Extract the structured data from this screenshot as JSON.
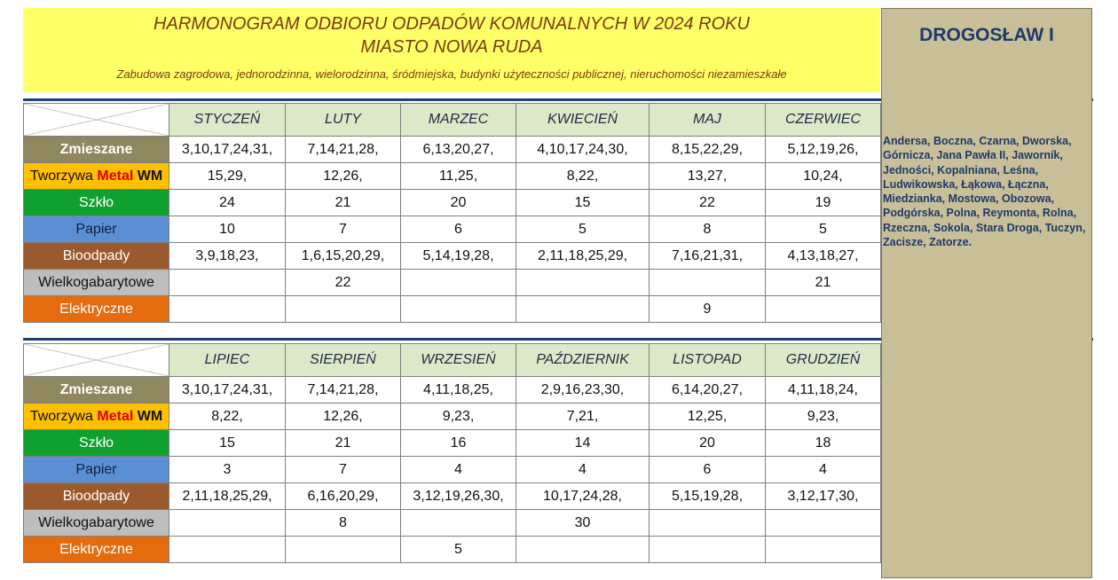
{
  "header": {
    "title_line1": "HARMONOGRAM ODBIORU  ODPADÓW  KOMUNALNYCH W 2024 ROKU",
    "title_line2": "MIASTO NOWA RUDA",
    "subtitle": "Zabudowa zagrodowa, jednorodzinna, wielorodzinna, śródmiejska, budynki użyteczności publicznej, nieruchomości niezamieszkałe"
  },
  "colors": {
    "header_bg": "#ffff66",
    "title_text": "#7b3b12",
    "side_bg": "#c8bf99",
    "side_text": "#1f3a6b",
    "month_bg": "#dce9c8",
    "rule": "#233e72"
  },
  "side": {
    "title": "DROGOSŁAW I",
    "streets": "Andersa, Boczna, Czarna, Dworska, Górnicza, Jana Pawła II, Jaworník, Jedności, Kopalniana, Leśna, Ludwikowska, Łąkowa, Łączna, Miedzianka, Mostowa, Obozowa, Podgórska, Polna, Reymonta, Rolna, Rzeczna, Sokola, Stara Droga, Tuczyn, Zacisze, Zatorze."
  },
  "categories": {
    "zmieszane": "Zmieszane",
    "tworzywa": "Tworzywa",
    "metal": "Metal",
    "wm": "WM",
    "szklo": "Szkło",
    "papier": "Papier",
    "bio": "Bioodpady",
    "wielko": "Wielkogabarytowe",
    "elektr": "Elektryczne"
  },
  "half1": {
    "months": [
      "STYCZEŃ",
      "LUTY",
      "MARZEC",
      "KWIECIEŃ",
      "MAJ",
      "CZERWIEC"
    ],
    "zmieszane": [
      "3,10,17,24,31,",
      "7,14,21,28,",
      "6,13,20,27,",
      "4,10,17,24,30,",
      "8,15,22,29,",
      "5,12,19,26,"
    ],
    "tworzywa": [
      "15,29,",
      "12,26,",
      "11,25,",
      "8,22,",
      "13,27,",
      "10,24,"
    ],
    "szklo": [
      "24",
      "21",
      "20",
      "15",
      "22",
      "19"
    ],
    "papier": [
      "10",
      "7",
      "6",
      "5",
      "8",
      "5"
    ],
    "bio": [
      "3,9,18,23,",
      "1,6,15,20,29,",
      "5,14,19,28,",
      "2,11,18,25,29,",
      "7,16,21,31,",
      "4,13,18,27,"
    ],
    "wielko": [
      "",
      "22",
      "",
      "",
      "",
      "21"
    ],
    "elektr": [
      "",
      "",
      "",
      "",
      "9",
      ""
    ]
  },
  "half2": {
    "months": [
      "LIPIEC",
      "SIERPIEŃ",
      "WRZESIEŃ",
      "PAŹDZIERNIK",
      "LISTOPAD",
      "GRUDZIEŃ"
    ],
    "zmieszane": [
      "3,10,17,24,31,",
      "7,14,21,28,",
      "4,11,18,25,",
      "2,9,16,23,30,",
      "6,14,20,27,",
      "4,11,18,24,"
    ],
    "tworzywa": [
      "8,22,",
      "12,26,",
      "9,23,",
      "7,21,",
      "12,25,",
      "9,23,"
    ],
    "szklo": [
      "15",
      "21",
      "16",
      "14",
      "20",
      "18"
    ],
    "papier": [
      "3",
      "7",
      "4",
      "4",
      "6",
      "4"
    ],
    "bio": [
      "2,11,18,25,29,",
      "6,16,20,29,",
      "3,12,19,26,30,",
      "10,17,24,28,",
      "5,15,19,28,",
      "3,12,17,30,"
    ],
    "wielko": [
      "",
      "8",
      "",
      "30",
      "",
      ""
    ],
    "elektr": [
      "",
      "",
      "5",
      "",
      "",
      ""
    ]
  }
}
